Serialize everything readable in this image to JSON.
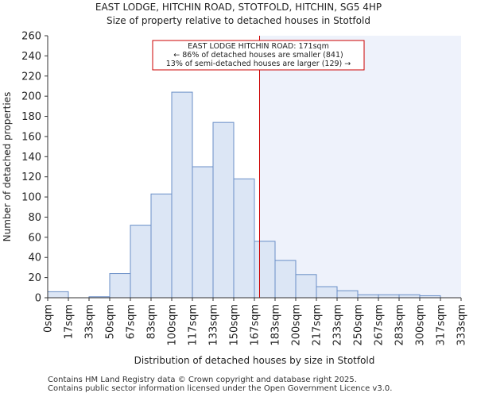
{
  "chart_data": {
    "type": "bar",
    "title": "EAST LODGE, HITCHIN ROAD, STOTFOLD, HITCHIN, SG5 4HP",
    "subtitle": "Size of property relative to detached houses in Stotfold",
    "xlabel": "Distribution of detached houses by size in Stotfold",
    "ylabel": "Number of detached properties",
    "ylim": [
      0,
      260
    ],
    "yticks": [
      "0",
      "20",
      "40",
      "60",
      "80",
      "100",
      "120",
      "140",
      "160",
      "180",
      "200",
      "220",
      "240",
      "260"
    ],
    "xticks": [
      "0sqm",
      "17sqm",
      "33sqm",
      "50sqm",
      "67sqm",
      "83sqm",
      "100sqm",
      "117sqm",
      "133sqm",
      "150sqm",
      "167sqm",
      "183sqm",
      "200sqm",
      "217sqm",
      "233sqm",
      "250sqm",
      "267sqm",
      "283sqm",
      "300sqm",
      "317sqm",
      "333sqm"
    ],
    "values": [
      6,
      0,
      1,
      24,
      72,
      103,
      204,
      130,
      174,
      118,
      56,
      37,
      23,
      11,
      7,
      3,
      3,
      3,
      2,
      0
    ],
    "property_bin_position": 10.25,
    "annotation": {
      "line1": "EAST LODGE HITCHIN ROAD: 171sqm",
      "line2": "← 86% of detached houses are smaller (841)",
      "line3": "13% of semi-detached houses are larger (129) →"
    },
    "colors": {
      "bar_fill": "#dce6f5",
      "bar_stroke": "#6a8fc7",
      "marker": "#cc0000",
      "highlight": "#eef2fb"
    }
  },
  "footer": {
    "line1": "Contains HM Land Registry data © Crown copyright and database right 2025.",
    "line2": "Contains public sector information licensed under the Open Government Licence v3.0."
  }
}
